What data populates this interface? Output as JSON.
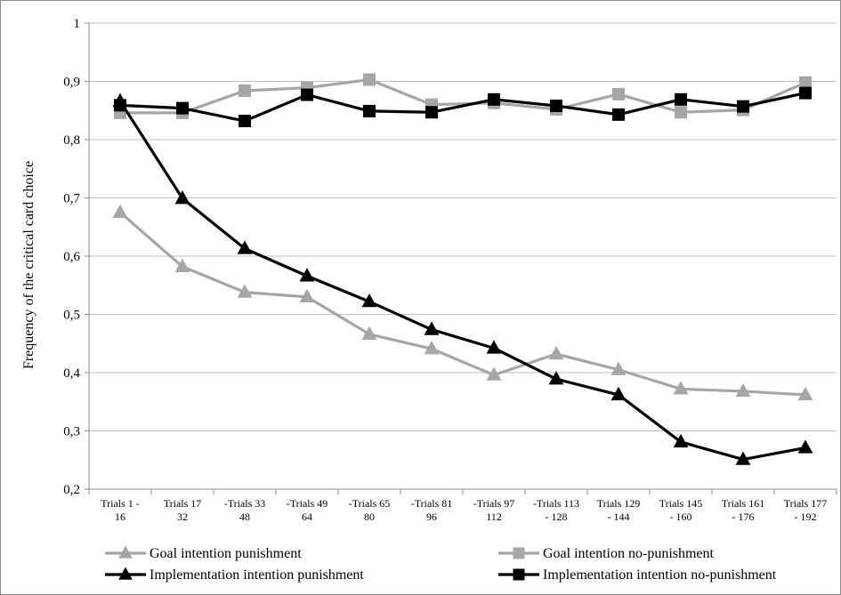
{
  "chart_data": {
    "type": "line",
    "title": "",
    "xlabel": "",
    "ylabel": "Frequency of the critical card choice",
    "ylim": [
      0.2,
      1.0
    ],
    "yticks": [
      "0,2",
      "0,3",
      "0,4",
      "0,5",
      "0,6",
      "0,7",
      "0,8",
      "0,9",
      "1"
    ],
    "grid": true,
    "legend_position": "bottom",
    "categories": [
      [
        "Trials 1 -",
        "16"
      ],
      [
        "Trials 17",
        "32"
      ],
      [
        "-Trials 33",
        "48"
      ],
      [
        "-Trials 49",
        "64"
      ],
      [
        "-Trials 65",
        "80"
      ],
      [
        "-Trials 81",
        "96"
      ],
      [
        "-Trials 97",
        "112"
      ],
      [
        "-Trials 113",
        "- 128"
      ],
      [
        "Trials 129",
        "- 144"
      ],
      [
        "Trials 145",
        "- 160"
      ],
      [
        "Trials 161",
        "- 176"
      ],
      [
        "Trials 177",
        "- 192"
      ]
    ],
    "series": [
      {
        "name": "Goal intention punishment",
        "color": "#a6a6a6",
        "marker": "triangle",
        "values": [
          0.675,
          0.582,
          0.538,
          0.53,
          0.466,
          0.441,
          0.396,
          0.432,
          0.405,
          0.372,
          0.368,
          0.362
        ]
      },
      {
        "name": "Goal intention no-punishment",
        "color": "#a6a6a6",
        "marker": "square",
        "values": [
          0.846,
          0.846,
          0.884,
          0.889,
          0.903,
          0.86,
          0.863,
          0.852,
          0.878,
          0.847,
          0.851,
          0.898
        ]
      },
      {
        "name": "Implementation intention punishment",
        "color": "#000000",
        "marker": "triangle",
        "values": [
          0.866,
          0.699,
          0.613,
          0.566,
          0.522,
          0.474,
          0.442,
          0.389,
          0.362,
          0.281,
          0.251,
          0.271
        ]
      },
      {
        "name": "Implementation intention no-punishment",
        "color": "#000000",
        "marker": "square",
        "values": [
          0.859,
          0.854,
          0.832,
          0.877,
          0.849,
          0.847,
          0.869,
          0.858,
          0.843,
          0.869,
          0.857,
          0.88
        ]
      }
    ]
  }
}
